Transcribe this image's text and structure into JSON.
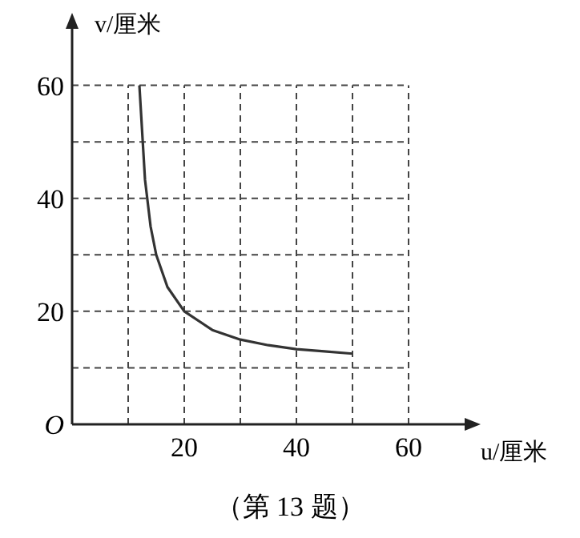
{
  "chart_data": {
    "type": "line",
    "xlabel": "u/厘米",
    "ylabel": "v/厘米",
    "x": [
      12,
      13,
      14,
      15,
      17,
      20,
      25,
      30,
      35,
      40,
      45,
      50
    ],
    "series": [
      {
        "color": "#333333",
        "values": [
          60,
          43.3,
          35,
          30,
          24.3,
          20,
          16.7,
          15,
          14,
          13.3,
          12.9,
          12.5
        ]
      }
    ],
    "xlim": [
      0,
      70
    ],
    "ylim": [
      0,
      70
    ],
    "xticks": [
      {
        "value": 10,
        "label": null
      },
      20,
      {
        "value": 30,
        "label": null
      },
      40,
      {
        "value": 50,
        "label": null
      },
      60
    ],
    "yticks": [
      {
        "value": 0,
        "label": "O"
      },
      {
        "value": 10,
        "label": null
      },
      20,
      {
        "value": 30,
        "label": null
      },
      40,
      {
        "value": 50,
        "label": null
      },
      60
    ],
    "grid": true,
    "marker": "none",
    "line_style": "solid",
    "annotations": [
      "（第 13 题）"
    ]
  }
}
